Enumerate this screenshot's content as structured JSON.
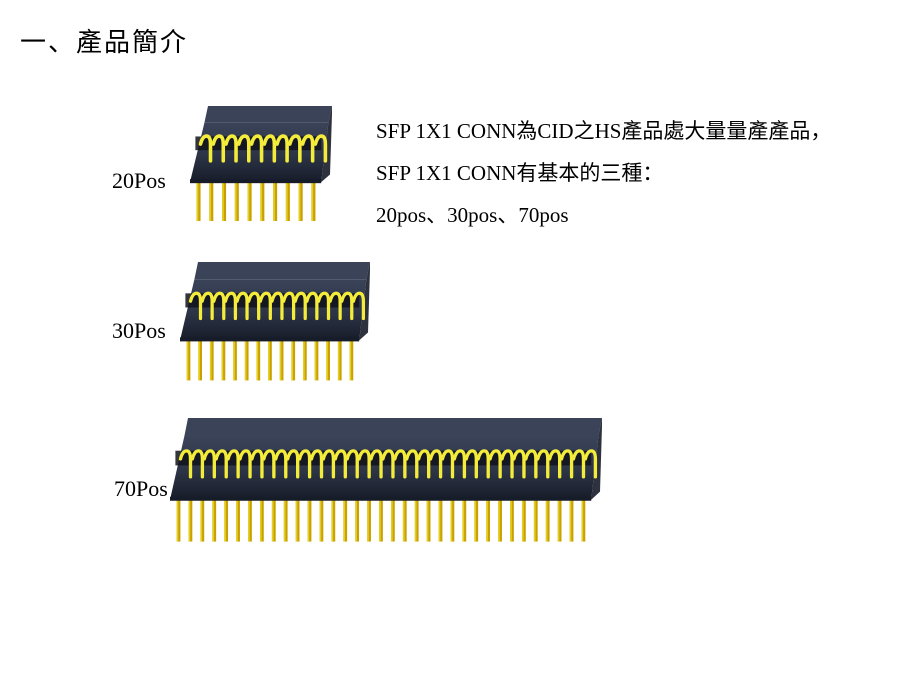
{
  "title": "一、產品簡介",
  "labels": {
    "p20": "20Pos",
    "p30": "30Pos",
    "p70": "70Pos"
  },
  "description": {
    "line1": "SFP 1X1 CONN為CID之HS產品處大量量產產品，",
    "line2": "SFP 1X1 CONN有基本的三種：",
    "line3": "20pos、30pos、70pos"
  },
  "connectors": {
    "p20": {
      "type": "connector-illustration",
      "pins": 10,
      "body_color_top": "#3a4358",
      "body_color_mid": "#2c3446",
      "body_color_bottom": "#171c29",
      "pin_color_upper": "#d7cc00",
      "pin_color_lower": "#caa000",
      "pin_highlight": "#f4ec3a",
      "view_width": 142,
      "view_height": 136
    },
    "p30": {
      "type": "connector-illustration",
      "pins": 15,
      "body_color_top": "#3a4358",
      "body_color_mid": "#2c3446",
      "body_color_bottom": "#171c29",
      "pin_color_upper": "#d7cc00",
      "pin_color_lower": "#caa000",
      "pin_highlight": "#f4ec3a",
      "view_width": 190,
      "view_height": 140
    },
    "p70": {
      "type": "connector-illustration",
      "pins": 35,
      "body_color_top": "#3a4358",
      "body_color_mid": "#2c3446",
      "body_color_bottom": "#171c29",
      "pin_color_upper": "#d7cc00",
      "pin_color_lower": "#caa000",
      "pin_highlight": "#f4ec3a",
      "view_width": 432,
      "view_height": 146
    }
  }
}
